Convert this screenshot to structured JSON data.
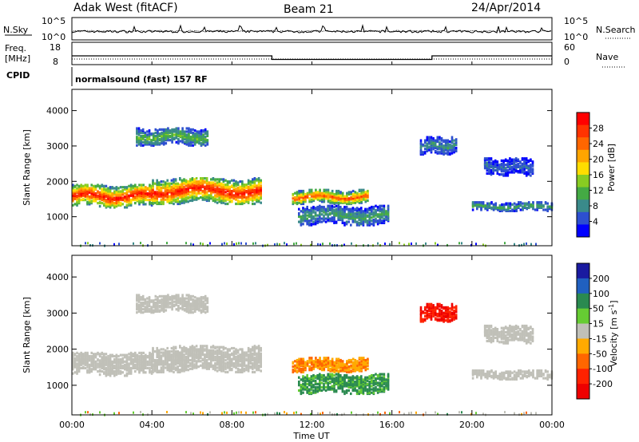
{
  "header": {
    "radar": "Adak West (fitACF)",
    "beam": "Beam 21",
    "date": "24/Apr/2014"
  },
  "noise_panel": {
    "left_label": "N.Sky",
    "right_label": "N.Search",
    "left_ticks": [
      "10^5",
      "10^0"
    ],
    "right_ticks": [
      "10^5",
      "10^0"
    ]
  },
  "freq_panel": {
    "left_label_1": "Freq.",
    "left_label_2": "[MHz]",
    "right_label": "Nave",
    "left_ticks": [
      "18",
      "8"
    ],
    "right_ticks": [
      "60",
      "0"
    ],
    "freq_segments": [
      {
        "from_h": 0,
        "to_h": 10,
        "mhz": 13
      },
      {
        "from_h": 10,
        "to_h": 18,
        "mhz": 10.5
      },
      {
        "from_h": 18,
        "to_h": 24,
        "mhz": 13
      }
    ]
  },
  "cpid": {
    "label": "CPID",
    "text": "normalsound (fast) 157 RF"
  },
  "power_panel": {
    "ylabel": "Slant Range [km]",
    "yticks": [
      "1000",
      "2000",
      "3000",
      "4000"
    ],
    "colorbar_title": "Power [dB]",
    "colorbar_ticks": [
      "4",
      "8",
      "12",
      "16",
      "20",
      "24",
      "28"
    ],
    "colors": [
      "#0000ff",
      "#2d4fd0",
      "#3a8a8a",
      "#44aa44",
      "#88cc22",
      "#ffdd00",
      "#ffa500",
      "#ff6600",
      "#ff3300",
      "#ff0000"
    ]
  },
  "velocity_panel": {
    "ylabel": "Slant Range [km]",
    "yticks": [
      "1000",
      "2000",
      "3000",
      "4000"
    ],
    "colorbar_title": "Velocity [m s",
    "colorbar_title_sup": "-1",
    "colorbar_title_end": "]",
    "colorbar_ticks": [
      "200",
      "100",
      "50",
      "15",
      "-15",
      "-50",
      "-100",
      "-200"
    ],
    "colors": [
      "#1a1aa0",
      "#2060c0",
      "#2a8a50",
      "#66cc33",
      "#c0c0b8",
      "#ffaa00",
      "#ff6600",
      "#ff2200",
      "#ee0000"
    ]
  },
  "x_axis": {
    "xlabel": "Time UT",
    "xticks": [
      "00:00",
      "04:00",
      "08:00",
      "12:00",
      "16:00",
      "20:00",
      "00:00"
    ]
  },
  "chart_data": {
    "type": "heatmap",
    "title": "Adak West (fitACF) Beam 21 24/Apr/2014",
    "x_range_hours": [
      0,
      24
    ],
    "y_range_km": [
      180,
      4600
    ],
    "xlabel": "Time UT",
    "ylabel": "Slant Range [km]",
    "power_colorbar_range_dB": [
      0,
      30
    ],
    "velocity_colorbar_range_ms": [
      -250,
      250
    ],
    "echo_regions": [
      {
        "t0": 0.0,
        "t1": 4.0,
        "r_top": 1950,
        "r_bot": 1300,
        "core_power_dB": 28,
        "velocity_ms": 0
      },
      {
        "t0": 4.0,
        "t1": 9.5,
        "r_top": 2150,
        "r_bot": 1400,
        "core_power_dB": 28,
        "velocity_ms": 0
      },
      {
        "t0": 3.2,
        "t1": 6.8,
        "r_top": 3550,
        "r_bot": 3050,
        "core_power_dB": 12,
        "velocity_ms": 0
      },
      {
        "t0": 11.0,
        "t1": 14.8,
        "r_top": 1800,
        "r_bot": 1400,
        "core_power_dB": 24,
        "velocity_ms": -30
      },
      {
        "t0": 11.3,
        "t1": 15.8,
        "r_top": 1350,
        "r_bot": 800,
        "core_power_dB": 10,
        "velocity_ms": 40
      },
      {
        "t0": 17.4,
        "t1": 19.2,
        "r_top": 3300,
        "r_bot": 2800,
        "core_power_dB": 8,
        "velocity_ms": -150
      },
      {
        "t0": 20.0,
        "t1": 24.0,
        "r_top": 1450,
        "r_bot": 1200,
        "core_power_dB": 10,
        "velocity_ms": 0
      },
      {
        "t0": 20.6,
        "t1": 23.0,
        "r_top": 2700,
        "r_bot": 2200,
        "core_power_dB": 6,
        "velocity_ms": 0
      }
    ]
  }
}
